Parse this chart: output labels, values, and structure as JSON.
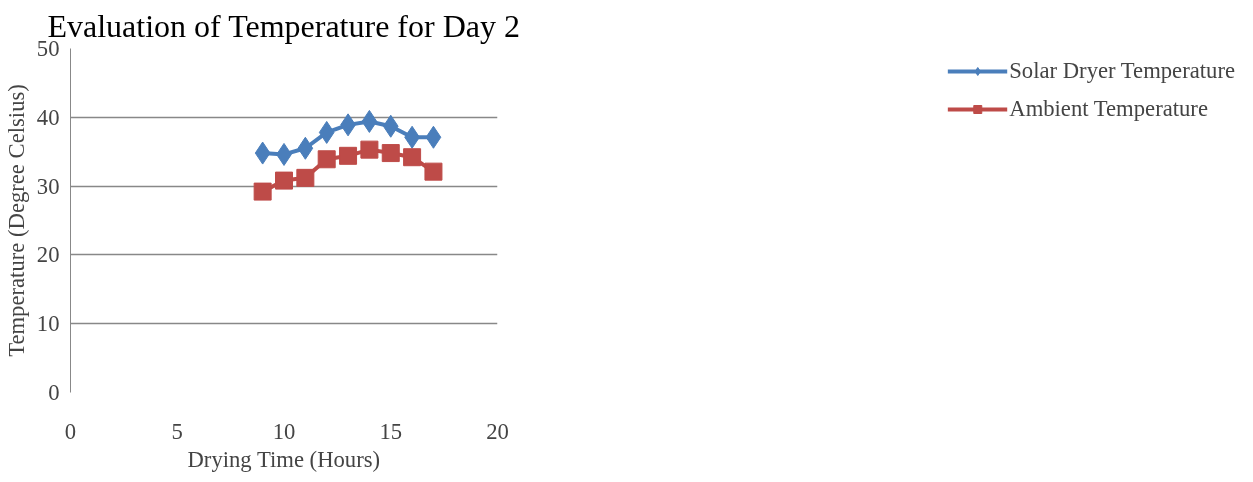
{
  "chart_data": {
    "type": "line",
    "title": "Evaluation of Temperature for Day 2",
    "xlabel": "Drying Time (Hours)",
    "ylabel": "Temperature (Degree Celsius)",
    "x": [
      9,
      10,
      11,
      12,
      13,
      14,
      15,
      16,
      17
    ],
    "series": [
      {
        "name": "Solar Dryer Temperature",
        "color": "#4a7ebb",
        "marker": "diamond",
        "values": [
          34.8,
          34.6,
          35.5,
          37.8,
          38.9,
          39.4,
          38.7,
          37.1,
          37.1
        ]
      },
      {
        "name": "Ambient Temperature",
        "color": "#be4b48",
        "marker": "square",
        "values": [
          29.2,
          30.8,
          31.2,
          33.9,
          34.4,
          35.3,
          34.8,
          34.2,
          32.1
        ]
      }
    ],
    "xlim": [
      0,
      20
    ],
    "xticks": [
      0,
      5,
      10,
      15,
      20
    ],
    "ylim": [
      0,
      50
    ],
    "yticks": [
      0,
      10,
      20,
      30,
      40,
      50
    ],
    "grid": "y",
    "legend": "right"
  }
}
